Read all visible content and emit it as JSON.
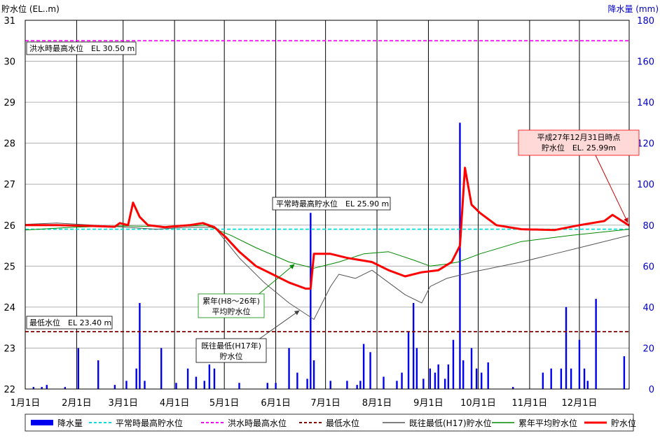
{
  "chart_data": {
    "type": "line",
    "y_left_label": "貯水位 (EL..m)",
    "y_right_label": "降水量 (mm)",
    "y_left_range": [
      22,
      31
    ],
    "y_right_range": [
      0,
      180
    ],
    "y_left_ticks": [
      "22",
      "23",
      "24",
      "25",
      "26",
      "27",
      "28",
      "29",
      "30",
      "31"
    ],
    "y_right_ticks": [
      "0",
      "20",
      "40",
      "60",
      "80",
      "100",
      "120",
      "140",
      "160",
      "180"
    ],
    "x_months": [
      "1月1日",
      "2月1日",
      "3月1日",
      "4月1日",
      "5月1日",
      "6月1日",
      "7月1日",
      "8月1日",
      "9月1日",
      "10月1日",
      "11月1日",
      "12月1日"
    ],
    "x_range_days": [
      1,
      365
    ],
    "reference_lines": [
      {
        "name": "平常時最高貯水位",
        "value": 25.9,
        "color": "#00dddd",
        "label": "平常時最高貯水位　EL 25.90 m"
      },
      {
        "name": "洪水時最高水位",
        "value": 30.5,
        "color": "#ff00ff",
        "label": "洪水時最高水位　EL 30.50 m"
      },
      {
        "name": "最低水位",
        "value": 23.4,
        "color": "#880000",
        "label": "最低水位　EL 23.40 m"
      }
    ],
    "series": [
      {
        "name": "貯水位",
        "color": "#ff0000",
        "points": [
          [
            1,
            26.0
          ],
          [
            20,
            26.0
          ],
          [
            40,
            25.98
          ],
          [
            55,
            25.96
          ],
          [
            58,
            26.05
          ],
          [
            63,
            26.0
          ],
          [
            66,
            26.55
          ],
          [
            70,
            26.2
          ],
          [
            75,
            26.0
          ],
          [
            85,
            25.95
          ],
          [
            100,
            26.0
          ],
          [
            108,
            26.05
          ],
          [
            115,
            25.95
          ],
          [
            122,
            25.7
          ],
          [
            130,
            25.35
          ],
          [
            140,
            25.0
          ],
          [
            150,
            24.8
          ],
          [
            160,
            24.6
          ],
          [
            170,
            24.45
          ],
          [
            173,
            24.45
          ],
          [
            175,
            25.3
          ],
          [
            185,
            25.3
          ],
          [
            195,
            25.2
          ],
          [
            210,
            25.1
          ],
          [
            220,
            24.9
          ],
          [
            230,
            24.75
          ],
          [
            240,
            24.85
          ],
          [
            250,
            24.9
          ],
          [
            258,
            25.1
          ],
          [
            263,
            25.5
          ],
          [
            266,
            27.4
          ],
          [
            270,
            26.5
          ],
          [
            275,
            26.3
          ],
          [
            285,
            26.0
          ],
          [
            300,
            25.9
          ],
          [
            320,
            25.88
          ],
          [
            335,
            26.0
          ],
          [
            350,
            26.1
          ],
          [
            355,
            26.25
          ],
          [
            365,
            25.99
          ]
        ]
      },
      {
        "name": "累年平均貯水位",
        "color": "#008800",
        "points": [
          [
            1,
            25.88
          ],
          [
            30,
            25.95
          ],
          [
            60,
            25.98
          ],
          [
            90,
            25.96
          ],
          [
            110,
            26.0
          ],
          [
            125,
            25.75
          ],
          [
            140,
            25.45
          ],
          [
            160,
            25.1
          ],
          [
            175,
            24.95
          ],
          [
            190,
            25.1
          ],
          [
            205,
            25.3
          ],
          [
            220,
            25.35
          ],
          [
            235,
            25.15
          ],
          [
            245,
            25.0
          ],
          [
            255,
            25.05
          ],
          [
            262,
            25.1
          ],
          [
            275,
            25.3
          ],
          [
            300,
            25.6
          ],
          [
            330,
            25.75
          ],
          [
            365,
            25.9
          ]
        ]
      },
      {
        "name": "既往最低(H17)貯水位",
        "color": "#555555",
        "points": [
          [
            1,
            26.02
          ],
          [
            20,
            26.05
          ],
          [
            50,
            25.98
          ],
          [
            80,
            25.9
          ],
          [
            100,
            25.95
          ],
          [
            115,
            25.95
          ],
          [
            120,
            25.7
          ],
          [
            130,
            25.2
          ],
          [
            145,
            24.6
          ],
          [
            160,
            24.1
          ],
          [
            175,
            23.7
          ],
          [
            180,
            24.1
          ],
          [
            185,
            24.5
          ],
          [
            190,
            24.8
          ],
          [
            200,
            24.7
          ],
          [
            210,
            24.9
          ],
          [
            220,
            24.6
          ],
          [
            230,
            24.3
          ],
          [
            240,
            24.1
          ],
          [
            245,
            24.5
          ],
          [
            255,
            24.7
          ],
          [
            270,
            24.85
          ],
          [
            300,
            25.1
          ],
          [
            320,
            25.3
          ],
          [
            340,
            25.5
          ],
          [
            365,
            25.75
          ]
        ]
      }
    ],
    "bar_series": {
      "name": "降水量",
      "color": "#0000ee",
      "points": [
        [
          6,
          1
        ],
        [
          11,
          1
        ],
        [
          14,
          2
        ],
        [
          25,
          1
        ],
        [
          33,
          20
        ],
        [
          45,
          14
        ],
        [
          55,
          2
        ],
        [
          62,
          4
        ],
        [
          68,
          10
        ],
        [
          70,
          42
        ],
        [
          73,
          4
        ],
        [
          83,
          20
        ],
        [
          92,
          3
        ],
        [
          99,
          10
        ],
        [
          104,
          6
        ],
        [
          109,
          4
        ],
        [
          112,
          12
        ],
        [
          115,
          10
        ],
        [
          130,
          3
        ],
        [
          147,
          3
        ],
        [
          152,
          3
        ],
        [
          160,
          20
        ],
        [
          165,
          8
        ],
        [
          171,
          5
        ],
        [
          173,
          86
        ],
        [
          175,
          14
        ],
        [
          185,
          4
        ],
        [
          195,
          4
        ],
        [
          201,
          2
        ],
        [
          203,
          4
        ],
        [
          205,
          22
        ],
        [
          209,
          18
        ],
        [
          217,
          6
        ],
        [
          225,
          4
        ],
        [
          228,
          8
        ],
        [
          232,
          28
        ],
        [
          235,
          42
        ],
        [
          237,
          20
        ],
        [
          241,
          5
        ],
        [
          245,
          10
        ],
        [
          248,
          8
        ],
        [
          250,
          12
        ],
        [
          254,
          5
        ],
        [
          256,
          12
        ],
        [
          259,
          24
        ],
        [
          263,
          130
        ],
        [
          265,
          14
        ],
        [
          270,
          20
        ],
        [
          273,
          10
        ],
        [
          276,
          8
        ],
        [
          280,
          13
        ],
        [
          295,
          1
        ],
        [
          313,
          8
        ],
        [
          318,
          10
        ],
        [
          324,
          10
        ],
        [
          327,
          40
        ],
        [
          330,
          10
        ],
        [
          335,
          24
        ],
        [
          338,
          10
        ],
        [
          340,
          4
        ],
        [
          345,
          44
        ],
        [
          362,
          16
        ]
      ]
    },
    "annotations": [
      {
        "text": "平常時最高貯水位　EL 25.90 m"
      },
      {
        "text": "洪水時最高水位　EL 30.50 m"
      },
      {
        "text": "最低水位　EL 23.40 m"
      },
      {
        "lines": [
          "累年(H8～26年)",
          "平均貯水位"
        ],
        "color": "#008800"
      },
      {
        "lines": [
          "既往最低(H17年)",
          "貯水位"
        ],
        "color": "#000000"
      },
      {
        "lines": [
          "平成27年12月31日時点",
          "貯水位　EL. 25.99m"
        ],
        "color": "#ff0000"
      }
    ],
    "legend": [
      {
        "name": "降水量",
        "kind": "bar",
        "color": "#0000ee"
      },
      {
        "name": "平常時最高貯水位",
        "kind": "dash",
        "color": "#00dddd"
      },
      {
        "name": "洪水時最高水位",
        "kind": "dash",
        "color": "#ff00ff"
      },
      {
        "name": "最低水位",
        "kind": "dash",
        "color": "#880000"
      },
      {
        "name": "既往最低(H17)貯水位",
        "kind": "line",
        "color": "#555555"
      },
      {
        "name": "累年平均貯水位",
        "kind": "line",
        "color": "#008800"
      },
      {
        "name": "貯水位",
        "kind": "line",
        "color": "#ff0000"
      }
    ],
    "legend_position": "bottom"
  }
}
